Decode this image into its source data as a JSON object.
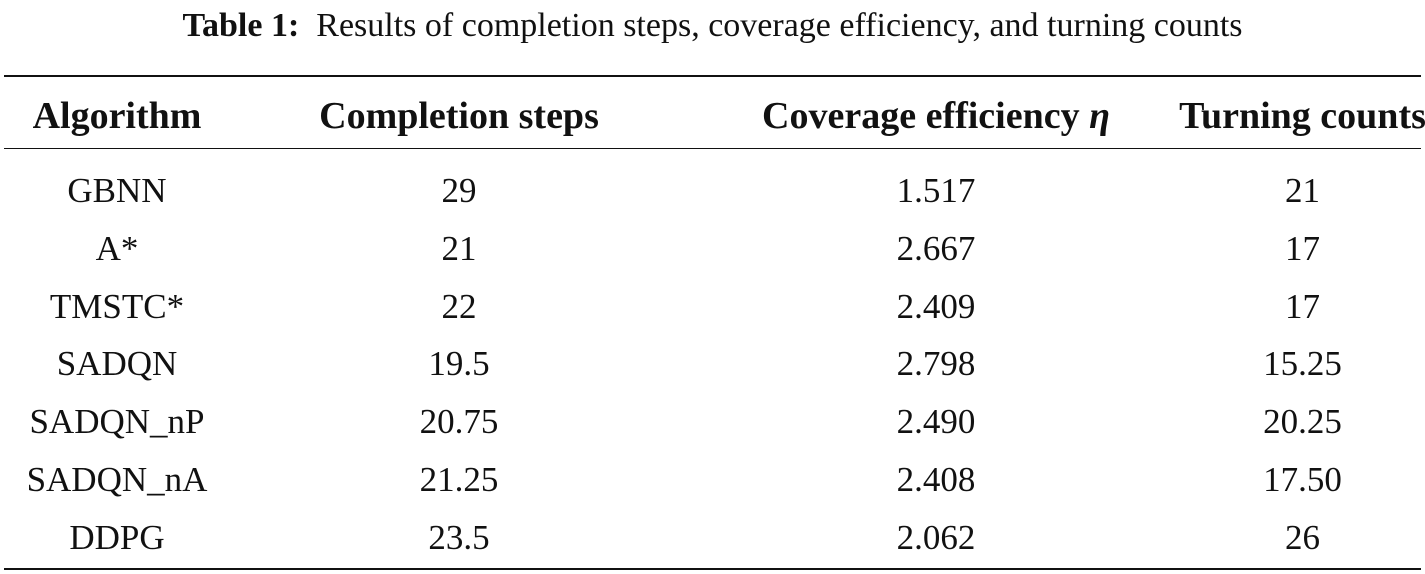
{
  "caption": {
    "label": "Table 1:",
    "text": "Results of completion steps, coverage efficiency, and turning counts"
  },
  "table": {
    "headers": {
      "algorithm": "Algorithm",
      "completion_steps": "Completion steps",
      "coverage_efficiency": "Coverage efficiency",
      "coverage_symbol": "η",
      "turning_counts": "Turning counts"
    },
    "rows": [
      {
        "algorithm": "GBNN",
        "completion_steps": "29",
        "coverage_efficiency": "1.517",
        "turning_counts": "21"
      },
      {
        "algorithm": "A*",
        "completion_steps": "21",
        "coverage_efficiency": "2.667",
        "turning_counts": "17"
      },
      {
        "algorithm": "TMSTC*",
        "completion_steps": "22",
        "coverage_efficiency": "2.409",
        "turning_counts": "17"
      },
      {
        "algorithm": "SADQN",
        "completion_steps": "19.5",
        "coverage_efficiency": "2.798",
        "turning_counts": "15.25"
      },
      {
        "algorithm": "SADQN_nP",
        "completion_steps": "20.75",
        "coverage_efficiency": "2.490",
        "turning_counts": "20.25"
      },
      {
        "algorithm": "SADQN_nA",
        "completion_steps": "21.25",
        "coverage_efficiency": "2.408",
        "turning_counts": "17.50"
      },
      {
        "algorithm": "DDPG",
        "completion_steps": "23.5",
        "coverage_efficiency": "2.062",
        "turning_counts": "26"
      }
    ]
  }
}
